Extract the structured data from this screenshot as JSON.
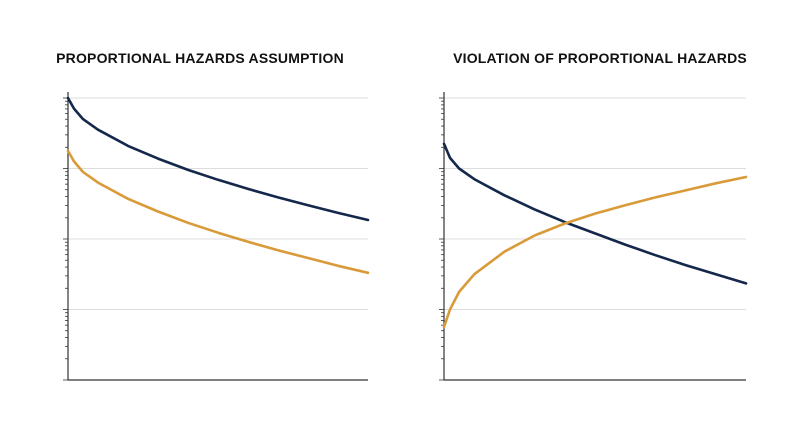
{
  "colors": {
    "series_a": "#14284b",
    "series_b": "#d99a3a",
    "grid": "#dddddd",
    "axis": "#333333"
  },
  "chart_data": [
    {
      "type": "line",
      "title": "PROPORTIONAL HAZARDS ASSUMPTION",
      "xlabel": "",
      "ylabel": "",
      "xlim": [
        0,
        1
      ],
      "ylim": [
        0,
        4
      ],
      "y_scale": "log",
      "grid": true,
      "legend": "none",
      "series": [
        {
          "color": "#14284b",
          "x": [
            0,
            0.02,
            0.05,
            0.1,
            0.2,
            0.3,
            0.4,
            0.5,
            0.6,
            0.7,
            0.8,
            0.9,
            1.0
          ],
          "y": [
            4.0,
            3.85,
            3.7,
            3.55,
            3.32,
            3.14,
            2.98,
            2.84,
            2.71,
            2.59,
            2.48,
            2.37,
            2.27
          ]
        },
        {
          "color": "#d99a3a",
          "x": [
            0,
            0.02,
            0.05,
            0.1,
            0.2,
            0.3,
            0.4,
            0.5,
            0.6,
            0.7,
            0.8,
            0.9,
            1.0
          ],
          "y": [
            3.25,
            3.1,
            2.95,
            2.8,
            2.57,
            2.39,
            2.23,
            2.09,
            1.96,
            1.84,
            1.73,
            1.62,
            1.52
          ]
        }
      ]
    },
    {
      "type": "line",
      "title": "VIOLATION OF PROPORTIONAL HAZARDS",
      "xlabel": "",
      "ylabel": "",
      "xlim": [
        0,
        1
      ],
      "ylim": [
        0,
        4
      ],
      "y_scale": "log",
      "grid": true,
      "legend": "none",
      "series": [
        {
          "color": "#14284b",
          "x": [
            0,
            0.02,
            0.05,
            0.1,
            0.2,
            0.3,
            0.4,
            0.5,
            0.6,
            0.7,
            0.8,
            0.9,
            1.0
          ],
          "y": [
            3.35,
            3.15,
            3.0,
            2.85,
            2.62,
            2.42,
            2.24,
            2.08,
            1.92,
            1.77,
            1.63,
            1.5,
            1.37
          ]
        },
        {
          "color": "#d99a3a",
          "x": [
            0,
            0.02,
            0.05,
            0.1,
            0.2,
            0.3,
            0.4,
            0.5,
            0.6,
            0.7,
            0.8,
            0.9,
            1.0
          ],
          "y": [
            0.75,
            1.0,
            1.25,
            1.5,
            1.82,
            2.05,
            2.22,
            2.36,
            2.48,
            2.59,
            2.69,
            2.79,
            2.88
          ]
        }
      ]
    }
  ]
}
